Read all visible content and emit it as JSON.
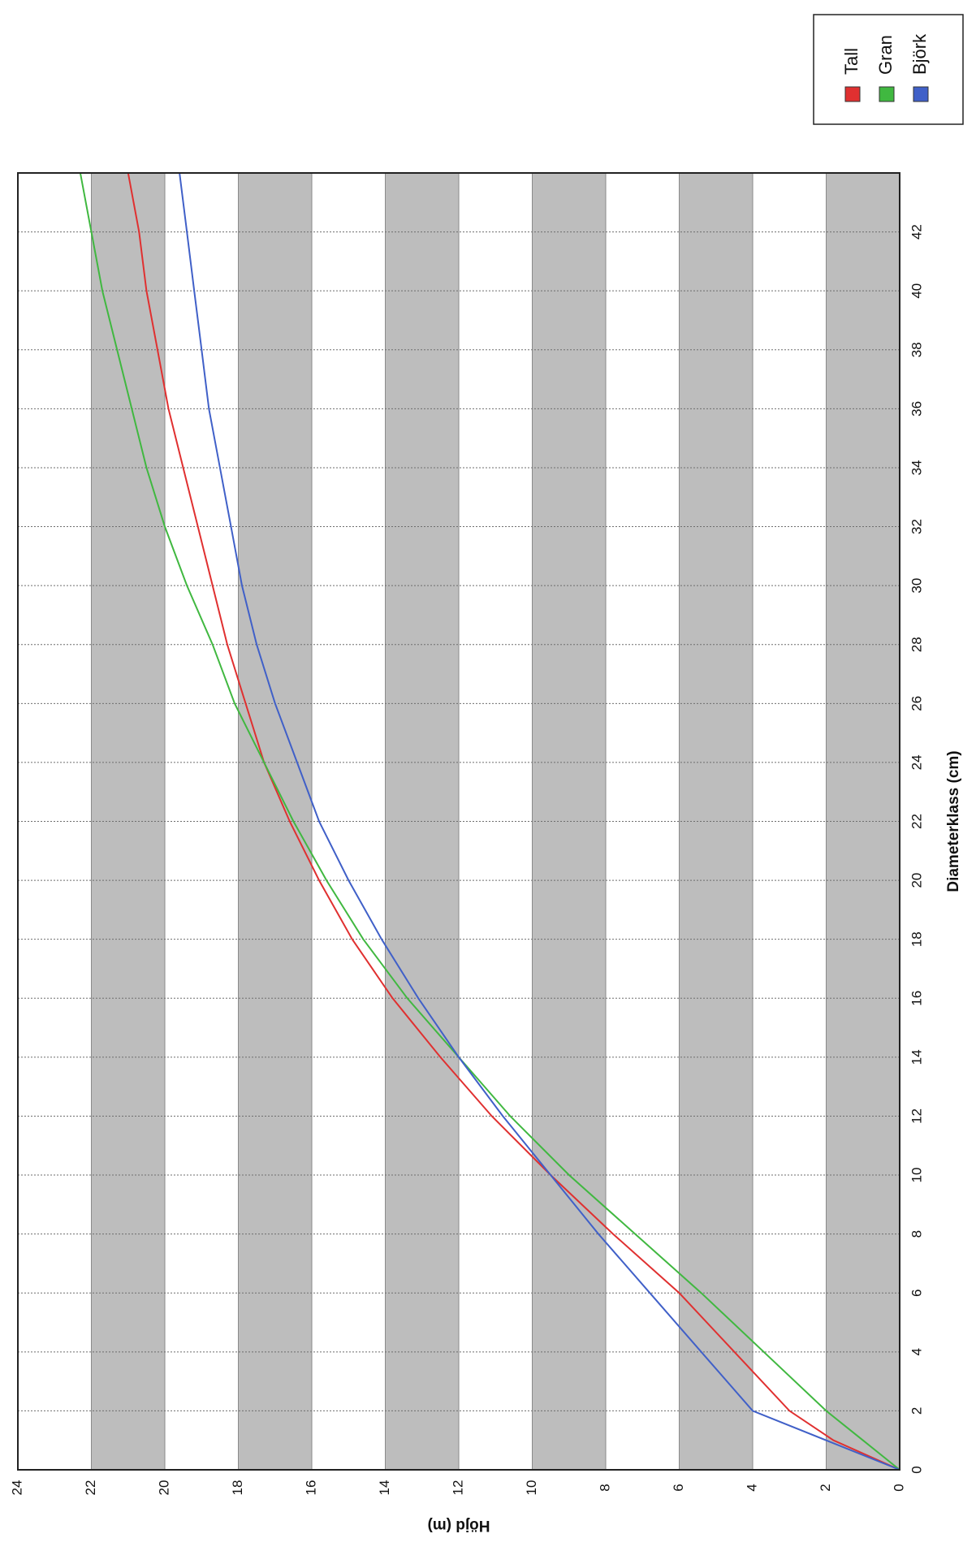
{
  "chart_data": {
    "type": "line",
    "orientation": "rotated-90",
    "xlabel": "Diameterklass (cm)",
    "ylabel": "Höjd (m)",
    "xlim": [
      0,
      44
    ],
    "ylim": [
      0,
      24
    ],
    "x_ticks": [
      0,
      2,
      4,
      6,
      8,
      10,
      12,
      14,
      16,
      18,
      20,
      22,
      24,
      26,
      28,
      30,
      32,
      34,
      36,
      38,
      40,
      42
    ],
    "y_ticks": [
      0,
      2,
      4,
      6,
      8,
      10,
      12,
      14,
      16,
      18,
      20,
      22,
      24
    ],
    "grid": true,
    "banded_background": true,
    "legend_position": "top-right",
    "series": [
      {
        "name": "Tall",
        "color": "#e03030",
        "x": [
          0,
          1,
          2,
          4,
          6,
          8,
          10,
          12,
          14,
          16,
          18,
          20,
          22,
          24,
          26,
          28,
          30,
          32,
          34,
          36,
          38,
          40,
          42,
          44
        ],
        "y": [
          0,
          1.8,
          3.0,
          4.5,
          6.0,
          7.8,
          9.5,
          11.1,
          12.5,
          13.8,
          14.9,
          15.8,
          16.6,
          17.3,
          17.8,
          18.3,
          18.7,
          19.1,
          19.5,
          19.9,
          20.2,
          20.5,
          20.7,
          21.0
        ]
      },
      {
        "name": "Gran",
        "color": "#40b840",
        "x": [
          0,
          1,
          2,
          4,
          6,
          8,
          10,
          12,
          14,
          16,
          18,
          20,
          22,
          24,
          26,
          28,
          30,
          32,
          34,
          36,
          38,
          40,
          42,
          44
        ],
        "y": [
          0,
          1.0,
          2.0,
          3.7,
          5.4,
          7.2,
          9.0,
          10.6,
          12.0,
          13.4,
          14.6,
          15.6,
          16.5,
          17.3,
          18.1,
          18.7,
          19.4,
          20.0,
          20.5,
          20.9,
          21.3,
          21.7,
          22.0,
          22.3
        ]
      },
      {
        "name": "Björk",
        "color": "#4060c8",
        "x": [
          0,
          1,
          2,
          4,
          6,
          8,
          10,
          12,
          14,
          16,
          18,
          20,
          22,
          24,
          26,
          28,
          30,
          32,
          34,
          36,
          38,
          40,
          42,
          44
        ],
        "y": [
          0,
          2.0,
          4.0,
          5.4,
          6.8,
          8.2,
          9.5,
          10.8,
          12.0,
          13.1,
          14.1,
          15.0,
          15.8,
          16.4,
          17.0,
          17.5,
          17.9,
          18.2,
          18.5,
          18.8,
          19.0,
          19.2,
          19.4,
          19.6
        ]
      }
    ]
  }
}
